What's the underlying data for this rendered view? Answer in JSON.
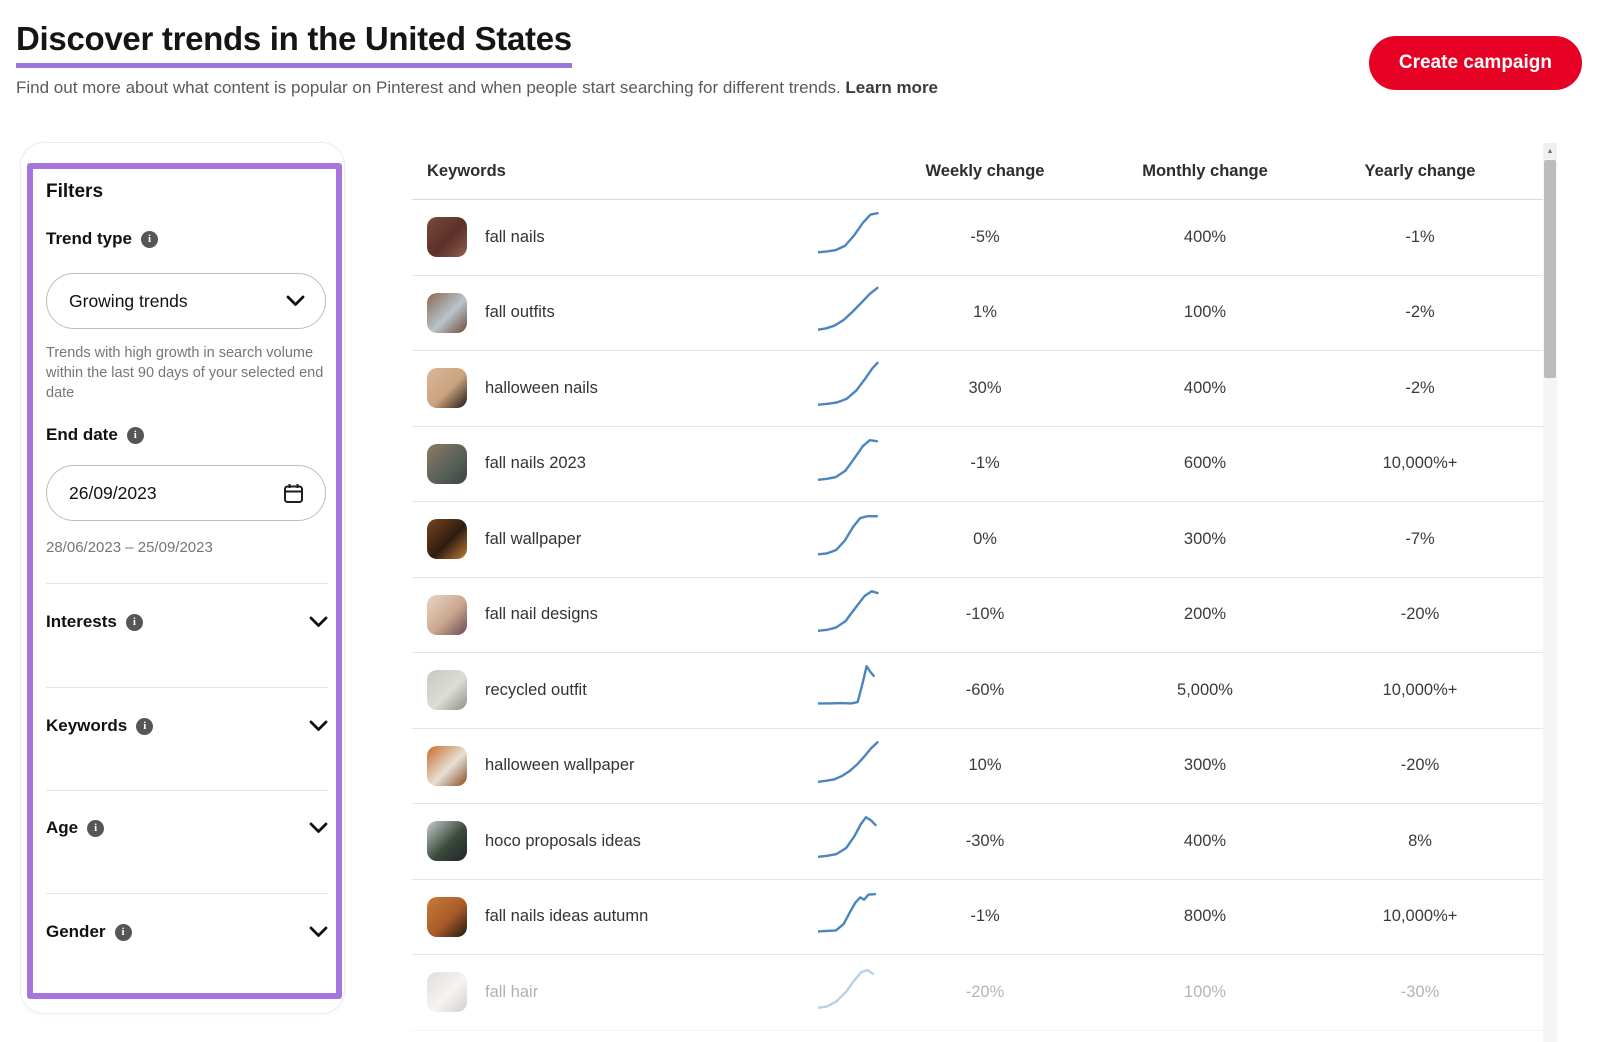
{
  "header": {
    "title": "Discover trends in the United States",
    "subtitle": "Find out more about what content is popular on Pinterest and when people start searching for different trends.",
    "learn_more": "Learn more",
    "create_campaign_label": "Create campaign"
  },
  "filters": {
    "panel_title": "Filters",
    "trend_type": {
      "label": "Trend type",
      "value": "Growing trends",
      "description": "Trends with high growth in search volume within the last 90 days of your selected end date"
    },
    "end_date": {
      "label": "End date",
      "value": "26/09/2023",
      "range": "28/06/2023 – 25/09/2023"
    },
    "sections": [
      {
        "label": "Interests"
      },
      {
        "label": "Keywords"
      },
      {
        "label": "Age"
      },
      {
        "label": "Gender"
      }
    ]
  },
  "table": {
    "columns": [
      "Keywords",
      "Weekly change",
      "Monthly change",
      "Yearly change"
    ],
    "rows": [
      {
        "keyword": "fall nails",
        "weekly": "-5%",
        "monthly": "400%",
        "yearly": "-1%",
        "faded": false,
        "thumb": [
          "#7a4a3a",
          "#5a3029",
          "#93604e"
        ],
        "spark": [
          [
            0,
            92
          ],
          [
            14,
            90
          ],
          [
            28,
            87
          ],
          [
            42,
            78
          ],
          [
            56,
            56
          ],
          [
            70,
            28
          ],
          [
            82,
            10
          ],
          [
            93,
            7
          ]
        ]
      },
      {
        "keyword": "fall outfits",
        "weekly": "1%",
        "monthly": "100%",
        "yearly": "-2%",
        "faded": false,
        "thumb": [
          "#8a6a52",
          "#b8c4cc",
          "#6e4a38"
        ],
        "spark": [
          [
            0,
            95
          ],
          [
            13,
            92
          ],
          [
            26,
            86
          ],
          [
            40,
            74
          ],
          [
            54,
            56
          ],
          [
            68,
            36
          ],
          [
            81,
            17
          ],
          [
            93,
            4
          ]
        ]
      },
      {
        "keyword": "halloween nails",
        "weekly": "30%",
        "monthly": "400%",
        "yearly": "-2%",
        "faded": false,
        "thumb": [
          "#d9b896",
          "#caa27e",
          "#1c1812"
        ],
        "spark": [
          [
            0,
            95
          ],
          [
            15,
            93
          ],
          [
            30,
            90
          ],
          [
            45,
            82
          ],
          [
            60,
            64
          ],
          [
            74,
            38
          ],
          [
            85,
            16
          ],
          [
            93,
            4
          ]
        ]
      },
      {
        "keyword": "fall nails 2023",
        "weekly": "-1%",
        "monthly": "600%",
        "yearly": "10,000%+",
        "faded": false,
        "thumb": [
          "#8c7a64",
          "#5a6258",
          "#3c4440"
        ],
        "spark": [
          [
            0,
            93
          ],
          [
            14,
            91
          ],
          [
            28,
            87
          ],
          [
            43,
            73
          ],
          [
            57,
            46
          ],
          [
            70,
            20
          ],
          [
            81,
            7
          ],
          [
            92,
            9
          ]
        ]
      },
      {
        "keyword": "fall wallpaper",
        "weekly": "0%",
        "monthly": "300%",
        "yearly": "-7%",
        "faded": false,
        "thumb": [
          "#7a4520",
          "#2e1c10",
          "#c27b3a"
        ],
        "spark": [
          [
            0,
            92
          ],
          [
            14,
            90
          ],
          [
            28,
            83
          ],
          [
            42,
            62
          ],
          [
            55,
            32
          ],
          [
            66,
            13
          ],
          [
            78,
            9
          ],
          [
            92,
            9
          ]
        ]
      },
      {
        "keyword": "fall nail designs",
        "weekly": "-10%",
        "monthly": "200%",
        "yearly": "-20%",
        "faded": false,
        "thumb": [
          "#e8d6c4",
          "#caa68e",
          "#6a4a52"
        ],
        "spark": [
          [
            0,
            93
          ],
          [
            14,
            91
          ],
          [
            28,
            86
          ],
          [
            43,
            72
          ],
          [
            58,
            44
          ],
          [
            73,
            17
          ],
          [
            84,
            7
          ],
          [
            93,
            11
          ]
        ]
      },
      {
        "keyword": "recycled outfit",
        "weekly": "-60%",
        "monthly": "5,000%",
        "yearly": "10,000%+",
        "faded": false,
        "thumb": [
          "#c8c8c2",
          "#ddddd7",
          "#8a9288"
        ],
        "spark": [
          [
            0,
            88
          ],
          [
            18,
            88
          ],
          [
            36,
            87
          ],
          [
            52,
            88
          ],
          [
            62,
            85
          ],
          [
            70,
            42
          ],
          [
            76,
            7
          ],
          [
            81,
            18
          ],
          [
            87,
            28
          ]
        ]
      },
      {
        "keyword": "halloween wallpaper",
        "weekly": "10%",
        "monthly": "300%",
        "yearly": "-20%",
        "faded": false,
        "thumb": [
          "#c96a28",
          "#e6e0d4",
          "#8a4a20"
        ],
        "spark": [
          [
            0,
            93
          ],
          [
            12,
            91
          ],
          [
            25,
            88
          ],
          [
            38,
            80
          ],
          [
            50,
            69
          ],
          [
            62,
            54
          ],
          [
            73,
            37
          ],
          [
            83,
            20
          ],
          [
            93,
            7
          ]
        ]
      },
      {
        "keyword": "hoco proposals ideas",
        "weekly": "-30%",
        "monthly": "400%",
        "yearly": "8%",
        "faded": false,
        "thumb": [
          "#c8ccd0",
          "#3a4a3a",
          "#20262a"
        ],
        "spark": [
          [
            0,
            93
          ],
          [
            14,
            91
          ],
          [
            29,
            87
          ],
          [
            44,
            74
          ],
          [
            57,
            48
          ],
          [
            67,
            22
          ],
          [
            75,
            7
          ],
          [
            83,
            14
          ],
          [
            90,
            24
          ]
        ]
      },
      {
        "keyword": "fall nails ideas autumn",
        "weekly": "-1%",
        "monthly": "800%",
        "yearly": "10,000%+",
        "faded": false,
        "thumb": [
          "#c87c3a",
          "#a85a28",
          "#241a12"
        ],
        "spark": [
          [
            0,
            90
          ],
          [
            14,
            89
          ],
          [
            28,
            88
          ],
          [
            40,
            74
          ],
          [
            50,
            48
          ],
          [
            58,
            28
          ],
          [
            66,
            16
          ],
          [
            72,
            21
          ],
          [
            79,
            10
          ],
          [
            89,
            9
          ]
        ]
      },
      {
        "keyword": "fall hair",
        "weekly": "-20%",
        "monthly": "100%",
        "yearly": "-30%",
        "faded": true,
        "thumb": [
          "#b0a8a2",
          "#e8e4e0",
          "#8a807a"
        ],
        "spark": [
          [
            0,
            93
          ],
          [
            14,
            90
          ],
          [
            29,
            79
          ],
          [
            44,
            58
          ],
          [
            57,
            33
          ],
          [
            67,
            16
          ],
          [
            77,
            11
          ],
          [
            86,
            19
          ]
        ]
      }
    ]
  },
  "colors": {
    "accent_red": "#e60023",
    "annotation_purple": "#a575db",
    "title_underline_purple": "#9b75d8",
    "sparkline_blue": "#4a85c0"
  }
}
